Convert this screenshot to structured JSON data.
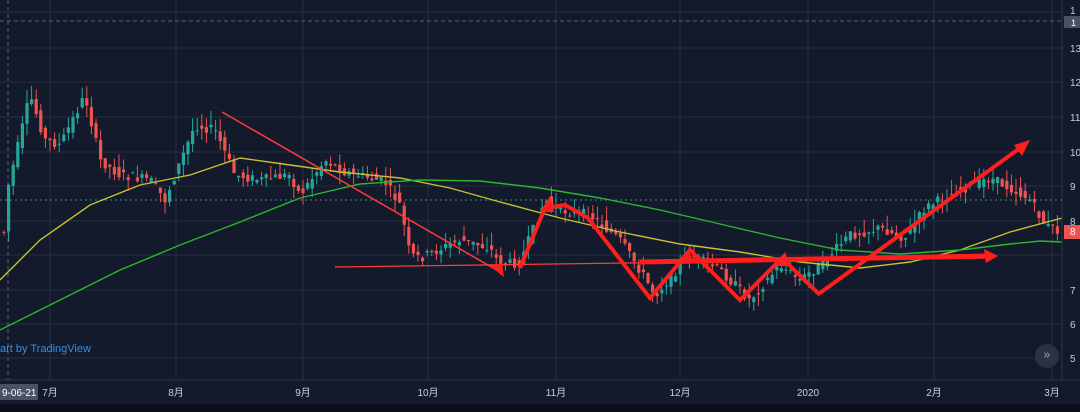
{
  "watermark": "art by TradingView",
  "nav_glyph": "»",
  "date_badge": "9-06-21",
  "price_badge": "8",
  "chart_data": {
    "type": "candlestick",
    "x_ticks": [
      "7月",
      "8月",
      "9月",
      "10月",
      "11月",
      "12月",
      "2020",
      "2月",
      "3月"
    ],
    "y_ticks": [
      "1",
      "13",
      "12",
      "11",
      "10",
      "9",
      "8",
      "7",
      "6",
      "5"
    ],
    "grid": true,
    "colors": {
      "up": "#26a69a",
      "down": "#ef5350",
      "ma_short": "#c8c032",
      "ma_long": "#2db52d",
      "annotation": "#ff1e1e",
      "bg": "#131a2b",
      "grid": "#252d40"
    }
  }
}
